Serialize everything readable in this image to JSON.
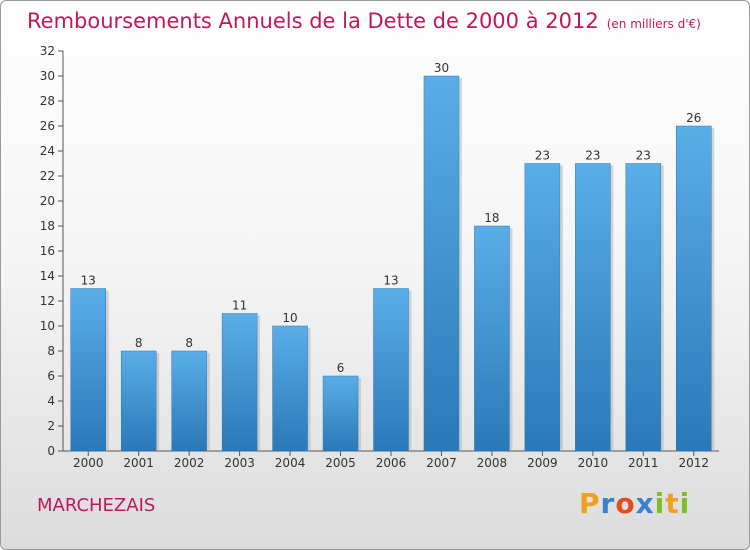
{
  "header": {
    "title": "Remboursements Annuels de la Dette de 2000 à 2012",
    "unit": "(en milliers d'€)"
  },
  "footer": {
    "place": "MARCHEZAIS",
    "logo": "Proxiti"
  },
  "colors": {
    "title": "#c2185b",
    "bar_light": "#5aaee8",
    "bar_dark": "#2a78b8"
  },
  "chart_data": {
    "type": "bar",
    "title": "Remboursements Annuels de la Dette de 2000 à 2012",
    "subtitle": "(en milliers d'€)",
    "xlabel": "",
    "ylabel": "",
    "categories": [
      "2000",
      "2001",
      "2002",
      "2003",
      "2004",
      "2005",
      "2006",
      "2007",
      "2008",
      "2009",
      "2010",
      "2011",
      "2012"
    ],
    "values": [
      13,
      8,
      8,
      11,
      10,
      6,
      13,
      30,
      18,
      23,
      23,
      23,
      26
    ],
    "ylim": [
      0,
      32
    ],
    "yticks": [
      0,
      2,
      4,
      6,
      8,
      10,
      12,
      14,
      16,
      18,
      20,
      22,
      24,
      26,
      28,
      30,
      32
    ],
    "grid": false,
    "data_labels": true
  }
}
